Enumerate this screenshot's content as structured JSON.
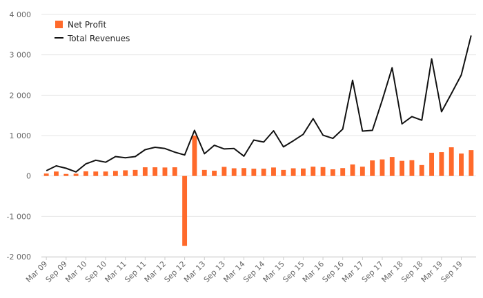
{
  "chart_data": {
    "type": "bar",
    "x_labels": [
      "Mar 09",
      "Sep 09",
      "Mar 10",
      "Sep 10",
      "Mar 11",
      "Sep 11",
      "Mar 12",
      "Sep 12",
      "Mar 13",
      "Sep 13",
      "Mar 14",
      "Sep 14",
      "Mar 15",
      "Sep 15",
      "Mar 16",
      "Sep 16",
      "Mar 17",
      "Sep 17",
      "Mar 18",
      "Sep 18",
      "Mar 19",
      "Sep 19"
    ],
    "ylim": [
      -2000,
      4000
    ],
    "yticks": [
      -2000,
      -1000,
      0,
      1000,
      2000,
      3000,
      4000
    ],
    "ytick_labels": [
      "-2 000",
      "-1 000",
      "0",
      "1 000",
      "2 000",
      "3 000",
      "4 000"
    ],
    "grid": true,
    "legend_position": "top-left",
    "series": [
      {
        "name": "Net Profit",
        "type": "bar",
        "color": "#ff6a2b",
        "values": [
          60,
          110,
          50,
          55,
          115,
          110,
          110,
          125,
          140,
          150,
          215,
          215,
          210,
          215,
          -1730,
          1000,
          150,
          130,
          225,
          190,
          195,
          180,
          180,
          210,
          150,
          190,
          185,
          230,
          220,
          165,
          195,
          285,
          230,
          385,
          410,
          470,
          375,
          390,
          270,
          575,
          590,
          710,
          555,
          640
        ]
      },
      {
        "name": "Total Revenues",
        "type": "line",
        "color": "#111111",
        "values": [
          130,
          250,
          190,
          100,
          300,
          390,
          340,
          480,
          450,
          480,
          650,
          710,
          680,
          590,
          520,
          1130,
          550,
          760,
          670,
          680,
          490,
          890,
          840,
          1120,
          720,
          870,
          1030,
          1420,
          1010,
          930,
          1160,
          2370,
          1110,
          1130,
          1880,
          2680,
          1290,
          1470,
          1380,
          2900,
          1590,
          2040,
          2500,
          3480
        ]
      }
    ]
  }
}
